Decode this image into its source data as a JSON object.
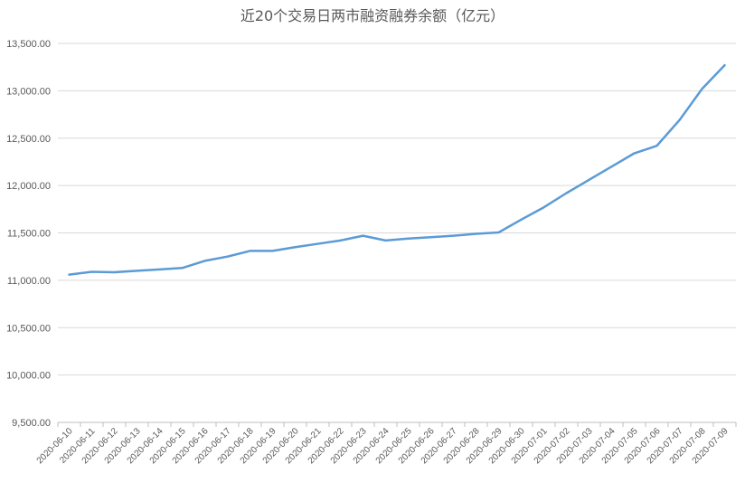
{
  "chart_data": {
    "type": "line",
    "title": "近20个交易日两市融资融券余额（亿元）",
    "xlabel": "",
    "ylabel": "",
    "ylim": [
      9500,
      13500
    ],
    "yticks": [
      "9,500.00",
      "10,000.00",
      "10,500.00",
      "11,000.00",
      "11,500.00",
      "12,000.00",
      "12,500.00",
      "13,000.00",
      "13,500.00"
    ],
    "grid": true,
    "legend": "none",
    "categories": [
      "2020-06-10",
      "2020-06-11",
      "2020-06-12",
      "2020-06-13",
      "2020-06-14",
      "2020-06-15",
      "2020-06-16",
      "2020-06-17",
      "2020-06-18",
      "2020-06-19",
      "2020-06-20",
      "2020-06-21",
      "2020-06-22",
      "2020-06-23",
      "2020-06-24",
      "2020-06-25",
      "2020-06-26",
      "2020-06-27",
      "2020-06-28",
      "2020-06-29",
      "2020-06-30",
      "2020-07-01",
      "2020-07-02",
      "2020-07-03",
      "2020-07-04",
      "2020-07-05",
      "2020-07-06",
      "2020-07-07",
      "2020-07-08",
      "2020-07-09"
    ],
    "series": [
      {
        "color": "#5b9bd5",
        "values": [
          11060,
          11090,
          11085,
          11100,
          11115,
          11130,
          11205,
          11250,
          11310,
          11310,
          11350,
          11385,
          11420,
          11470,
          11420,
          11440,
          11455,
          11470,
          11490,
          11505,
          11640,
          11770,
          11920,
          12060,
          12200,
          12340,
          12420,
          12690,
          13020,
          13270
        ]
      }
    ]
  }
}
